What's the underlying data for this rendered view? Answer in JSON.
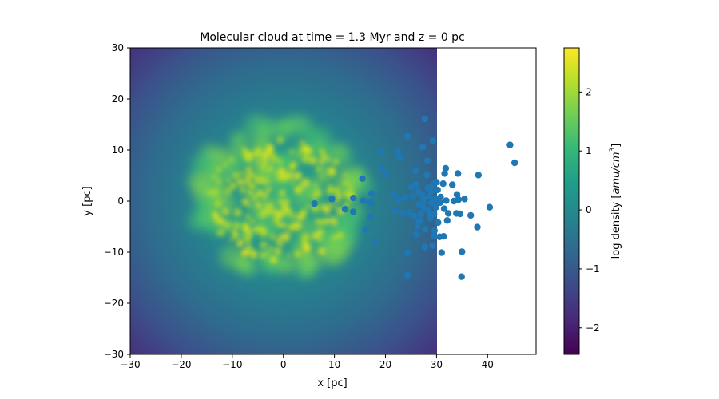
{
  "chart_data": {
    "type": "scatter",
    "title": "Molecular cloud at time = 1.3 Myr and z = 0 pc",
    "xlabel": "x [pc]",
    "ylabel": "y [pc]",
    "xlim": [
      -30,
      49.5
    ],
    "ylim": [
      -30,
      30
    ],
    "xticks": [
      -30,
      -20,
      -10,
      0,
      10,
      20,
      30,
      40
    ],
    "yticks": [
      -30,
      -20,
      -10,
      0,
      10,
      20,
      30
    ],
    "xtick_labels": [
      "−30",
      "−20",
      "−10",
      "0",
      "10",
      "20",
      "30",
      "40"
    ],
    "ytick_labels": [
      "−30",
      "−20",
      "−10",
      "0",
      "10",
      "20",
      "30"
    ],
    "grid": false,
    "background_image": {
      "name": "log density map",
      "extent_x": [
        -30,
        30
      ],
      "extent_y": [
        -30,
        30
      ],
      "colormap": "viridis"
    },
    "colorbar": {
      "label": "log density [amu/cm³]",
      "label_parts": [
        "log density [",
        "amu",
        "/",
        "cm",
        "3",
        "]"
      ],
      "range": [
        -2.45,
        2.75
      ],
      "ticks": [
        -2,
        -1,
        0,
        1,
        2
      ],
      "tick_labels": [
        "−2",
        "−1",
        "0",
        "1",
        "2"
      ],
      "colors": [
        "#440154",
        "#482878",
        "#3e4989",
        "#31688e",
        "#26828e",
        "#1f9e89",
        "#35b779",
        "#6ece58",
        "#b5de2b",
        "#fde725"
      ]
    },
    "marker_color": "#1f77b4",
    "points": [
      [
        6.1,
        -0.5
      ],
      [
        9.5,
        0.4
      ],
      [
        12.1,
        -1.6
      ],
      [
        13.7,
        0.6
      ],
      [
        13.7,
        -2.1
      ],
      [
        15.5,
        4.4
      ],
      [
        15.7,
        0.1
      ],
      [
        16.1,
        -5.6
      ],
      [
        17.1,
        -0.3
      ],
      [
        17.1,
        -3.1
      ],
      [
        17.3,
        1.5
      ],
      [
        17.9,
        -7.9
      ],
      [
        19.2,
        9.6
      ],
      [
        19.3,
        6.4
      ],
      [
        20.1,
        5.3
      ],
      [
        21.6,
        1.2
      ],
      [
        21.9,
        -1.9
      ],
      [
        22.4,
        9.6
      ],
      [
        22.8,
        8.5
      ],
      [
        22.6,
        0.3
      ],
      [
        23.3,
        -2.4
      ],
      [
        23.9,
        0.7
      ],
      [
        24.3,
        12.7
      ],
      [
        24.3,
        -10.1
      ],
      [
        24.3,
        -14.5
      ],
      [
        24.6,
        -2.2
      ],
      [
        25.1,
        2.7
      ],
      [
        25.4,
        0.9
      ],
      [
        25.6,
        -2.9
      ],
      [
        25.9,
        6.0
      ],
      [
        25.9,
        3.3
      ],
      [
        26.0,
        -6.5
      ],
      [
        26.3,
        -4.9
      ],
      [
        26.6,
        -0.6
      ],
      [
        26.9,
        -2.6
      ],
      [
        27.1,
        1.3
      ],
      [
        27.3,
        10.6
      ],
      [
        27.5,
        -1.5
      ],
      [
        27.6,
        0.3
      ],
      [
        27.7,
        16.1
      ],
      [
        27.7,
        -9.0
      ],
      [
        28.1,
        5.1
      ],
      [
        28.2,
        7.9
      ],
      [
        28.3,
        2.6
      ],
      [
        28.4,
        -1.8
      ],
      [
        28.6,
        0.9
      ],
      [
        28.8,
        -3.3
      ],
      [
        29.0,
        1.9
      ],
      [
        29.0,
        -0.4
      ],
      [
        29.2,
        -8.7
      ],
      [
        29.3,
        11.8
      ],
      [
        29.5,
        3.4
      ],
      [
        29.5,
        -2.5
      ],
      [
        29.8,
        0.4
      ],
      [
        29.9,
        -1.2
      ],
      [
        30.2,
        2.2
      ],
      [
        30.3,
        -4.2
      ],
      [
        30.6,
        -7.0
      ],
      [
        30.8,
        0.8
      ],
      [
        31.0,
        -10.1
      ],
      [
        31.3,
        3.4
      ],
      [
        31.5,
        -1.5
      ],
      [
        31.6,
        5.4
      ],
      [
        31.8,
        6.4
      ],
      [
        31.9,
        0.1
      ],
      [
        32.1,
        -3.8
      ],
      [
        32.3,
        -2.4
      ],
      [
        33.1,
        3.2
      ],
      [
        33.4,
        0.0
      ],
      [
        33.9,
        -2.4
      ],
      [
        34.0,
        1.3
      ],
      [
        34.2,
        5.4
      ],
      [
        34.3,
        0.3
      ],
      [
        34.6,
        -2.5
      ],
      [
        34.9,
        -14.8
      ],
      [
        35.0,
        -9.9
      ],
      [
        35.5,
        0.4
      ],
      [
        36.7,
        -2.8
      ],
      [
        38.0,
        -5.1
      ],
      [
        38.2,
        5.1
      ],
      [
        40.4,
        -1.2
      ],
      [
        44.4,
        11.0
      ],
      [
        45.3,
        7.5
      ],
      [
        26.6,
        -3.9
      ],
      [
        28.9,
        2.7
      ],
      [
        30.7,
        -0.3
      ],
      [
        27.8,
        -5.5
      ],
      [
        29.6,
        -5.8
      ],
      [
        27.2,
        -0.9
      ],
      [
        28.9,
        -2.8
      ],
      [
        30.0,
        3.7
      ],
      [
        26.4,
        1.8
      ],
      [
        29.5,
        -6.9
      ],
      [
        31.4,
        -6.9
      ]
    ]
  }
}
